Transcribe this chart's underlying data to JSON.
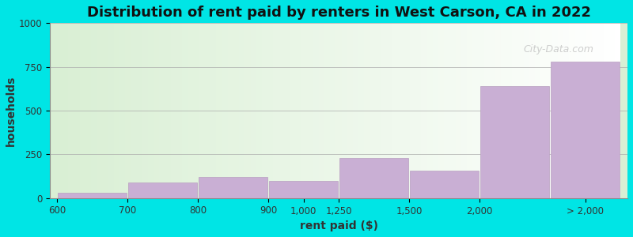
{
  "title": "Distribution of rent paid by renters in West Carson, CA in 2022",
  "xlabel": "rent paid ($)",
  "ylabel": "households",
  "bar_labels": [
    "< 600",
    "700",
    "800",
    "900–1,000",
    "1,250",
    "1,500",
    "2,000",
    "> 2,000"
  ],
  "bar_positions": [
    0,
    1,
    2,
    3,
    4,
    5,
    6,
    7
  ],
  "bar_widths": [
    1,
    1,
    1,
    1,
    1,
    1,
    1,
    1
  ],
  "bar_heights": [
    30,
    90,
    120,
    100,
    230,
    155,
    640,
    780
  ],
  "bar_color": "#c9afd4",
  "bar_edge_color": "#b89fc0",
  "xtick_labels": [
    "600",
    "700",
    "800",
    "9001,000",
    "1,250",
    "1,500",
    "2,000",
    "> 2,000"
  ],
  "ylim": [
    0,
    1000
  ],
  "yticks": [
    0,
    250,
    500,
    750,
    1000
  ],
  "background_outer": "#00e5e5",
  "plot_bg_left": "#d9efd4",
  "plot_bg_right": "#ffffff",
  "title_fontsize": 13,
  "axis_label_fontsize": 10,
  "tick_fontsize": 8.5,
  "watermark": "City-Data.com"
}
